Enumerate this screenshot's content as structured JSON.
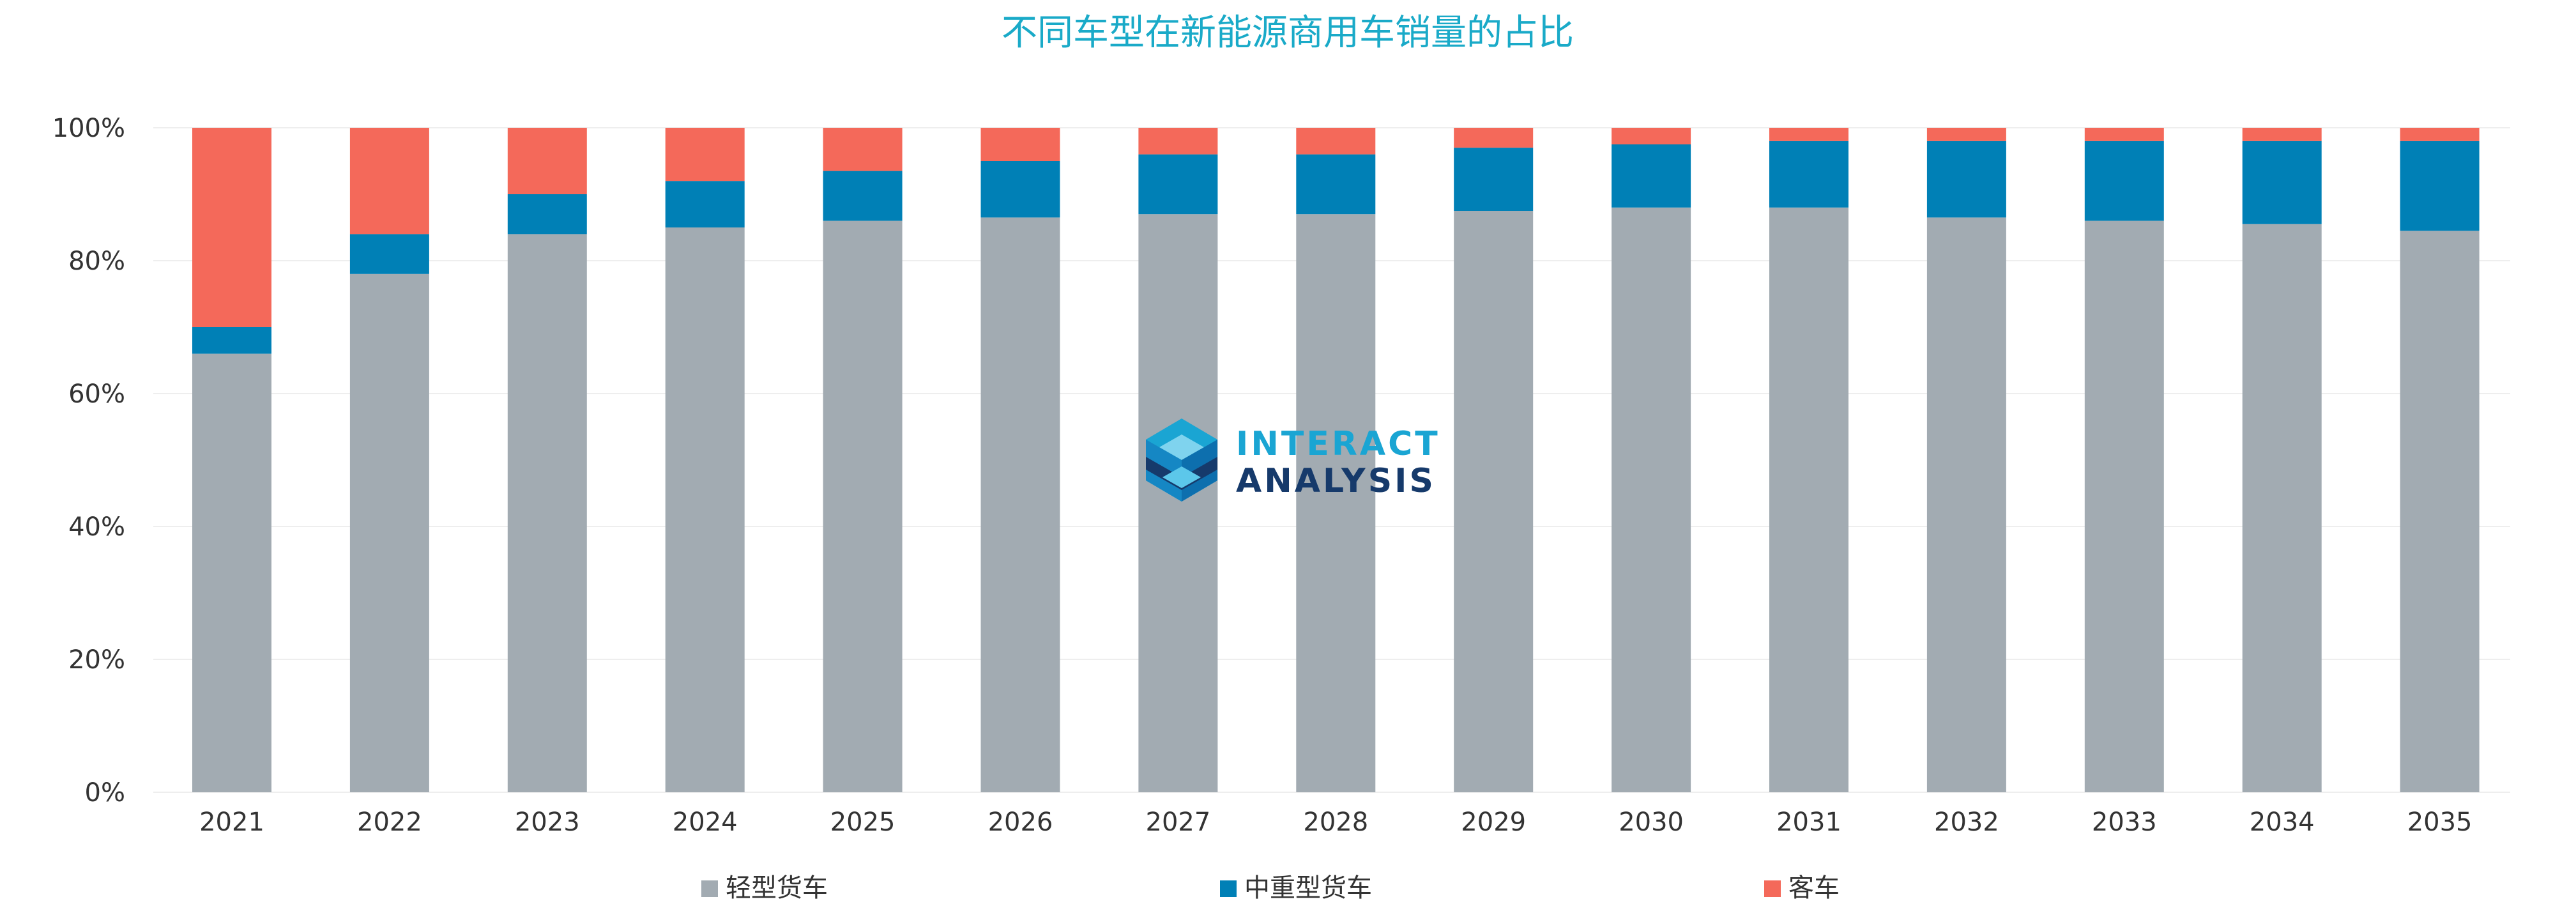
{
  "chart_data": {
    "type": "bar",
    "stacked": true,
    "title": "不同车型在新能源商用车销量的占比",
    "xlabel": "",
    "ylabel": "",
    "ylim": [
      0,
      100
    ],
    "ytick_values": [
      0,
      20,
      40,
      60,
      80,
      100
    ],
    "ytick_labels": [
      "0%",
      "20%",
      "40%",
      "60%",
      "80%",
      "100%"
    ],
    "grid": true,
    "legend_position": "bottom",
    "categories": [
      "2021",
      "2022",
      "2023",
      "2024",
      "2025",
      "2026",
      "2027",
      "2028",
      "2029",
      "2030",
      "2031",
      "2032",
      "2033",
      "2034",
      "2035"
    ],
    "series": [
      {
        "name": "轻型货车",
        "color": "#a2abb2",
        "values": [
          66,
          78,
          84,
          85,
          86,
          86.5,
          87,
          87,
          87.5,
          88,
          88,
          86.5,
          86,
          85.5,
          84.5
        ]
      },
      {
        "name": "中重型货车",
        "color": "#0080b6",
        "values": [
          4,
          6,
          6,
          7,
          7.5,
          8.5,
          9,
          9,
          9.5,
          9.5,
          10,
          11.5,
          12,
          12.5,
          13.5
        ]
      },
      {
        "name": "客车",
        "color": "#f4695a",
        "values": [
          30,
          16,
          10,
          8,
          6.5,
          5,
          4,
          4,
          3,
          2.5,
          2,
          2,
          2,
          2,
          2
        ]
      }
    ]
  },
  "logo": {
    "line1": "INTERACT",
    "line2": "ANALYSIS",
    "color_line1": "#1aa5d3",
    "color_line2": "#163a6b"
  },
  "colors": {
    "title": "#1aaac8",
    "axis_text": "#333333",
    "grid": "#eeeeee"
  }
}
